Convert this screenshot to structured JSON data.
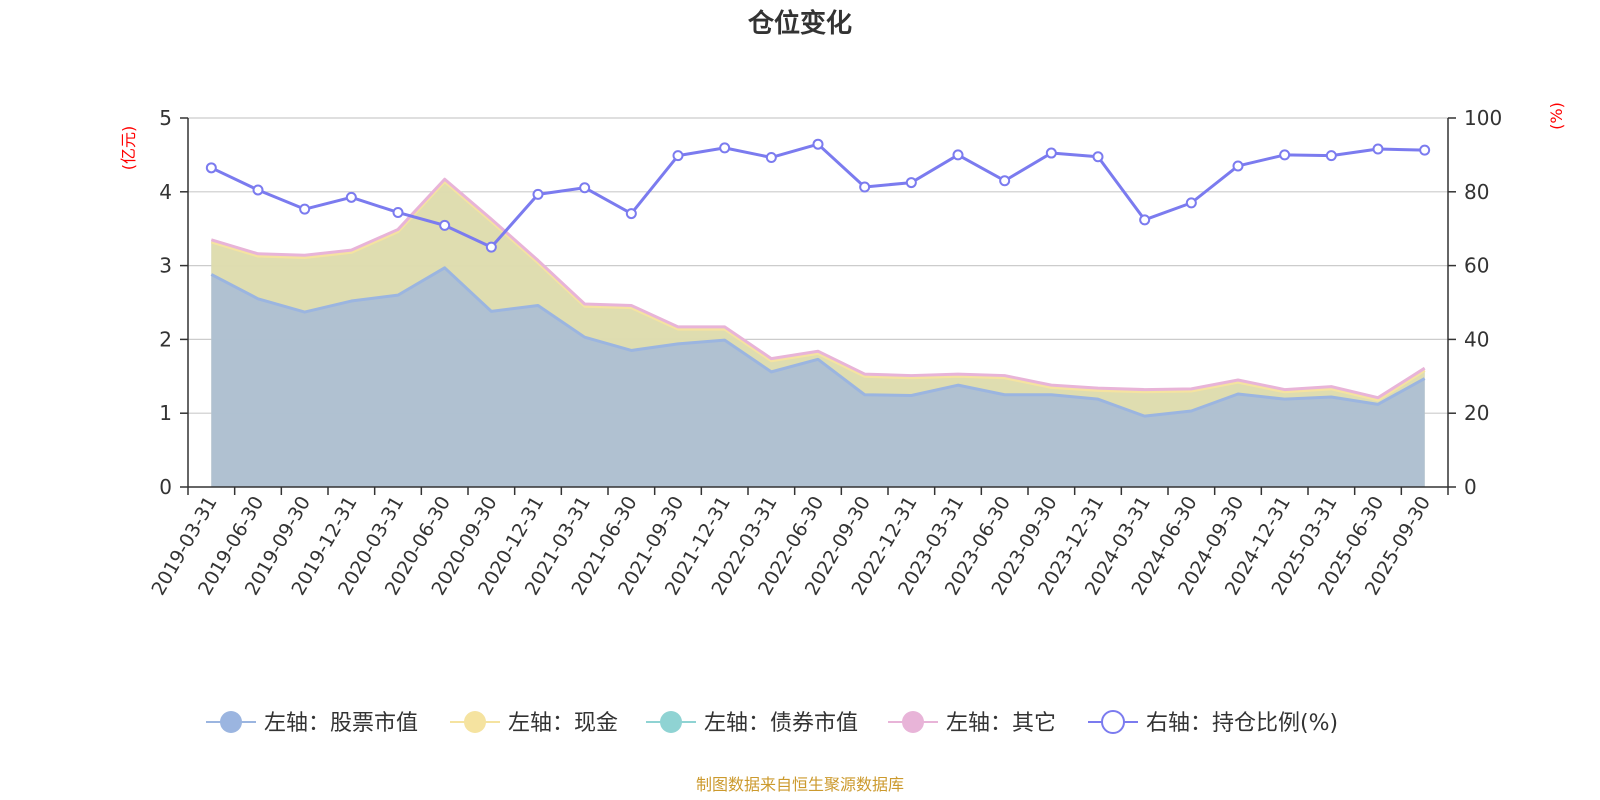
{
  "chart_data": {
    "type": "area",
    "title": "仓位变化",
    "left_axis_unit": "(亿元)",
    "right_axis_unit": "(%)",
    "ylim_left": [
      0,
      5
    ],
    "ylim_right": [
      0,
      100
    ],
    "yticks_left": [
      "0",
      "1",
      "2",
      "3",
      "4",
      "5"
    ],
    "yticks_right": [
      "0",
      "20",
      "40",
      "60",
      "80",
      "100"
    ],
    "categories": [
      "2019-03-31",
      "2019-06-30",
      "2019-09-30",
      "2019-12-31",
      "2020-03-31",
      "2020-06-30",
      "2020-09-30",
      "2020-12-31",
      "2021-03-31",
      "2021-06-30",
      "2021-09-30",
      "2021-12-31",
      "2022-03-31",
      "2022-06-30",
      "2022-09-30",
      "2022-12-31",
      "2023-03-31",
      "2023-06-30",
      "2023-09-30",
      "2023-12-31",
      "2024-03-31",
      "2024-06-30",
      "2024-09-30",
      "2024-12-31",
      "2025-03-31",
      "2025-06-30",
      "2025-09-30"
    ],
    "series": [
      {
        "name": "左轴：股票市值",
        "axis": "left",
        "color": "#9bb5e0",
        "values": [
          2.88,
          2.55,
          2.37,
          2.52,
          2.6,
          2.97,
          2.38,
          2.46,
          2.03,
          1.85,
          1.94,
          1.99,
          1.56,
          1.73,
          1.25,
          1.24,
          1.38,
          1.25,
          1.25,
          1.19,
          0.96,
          1.03,
          1.26,
          1.19,
          1.22,
          1.12,
          1.47
        ]
      },
      {
        "name": "左轴：现金",
        "axis": "left",
        "color": "#f5e3a0",
        "values": [
          0.44,
          0.58,
          0.74,
          0.66,
          0.86,
          1.17,
          1.22,
          0.58,
          0.42,
          0.58,
          0.2,
          0.15,
          0.15,
          0.08,
          0.25,
          0.24,
          0.12,
          0.23,
          0.1,
          0.12,
          0.33,
          0.27,
          0.16,
          0.1,
          0.11,
          0.06,
          0.11
        ]
      },
      {
        "name": "左轴：债券市值",
        "axis": "left",
        "color": "#8fd3d3",
        "values": [
          0,
          0,
          0,
          0,
          0,
          0,
          0,
          0,
          0,
          0,
          0,
          0,
          0,
          0,
          0,
          0,
          0,
          0,
          0,
          0,
          0,
          0,
          0,
          0,
          0,
          0,
          0
        ]
      },
      {
        "name": "左轴：其它",
        "axis": "left",
        "color": "#e8b4d8",
        "values": [
          0.03,
          0.03,
          0.03,
          0.03,
          0.03,
          0.03,
          0.03,
          0.03,
          0.03,
          0.03,
          0.03,
          0.03,
          0.03,
          0.03,
          0.03,
          0.03,
          0.03,
          0.03,
          0.03,
          0.03,
          0.03,
          0.03,
          0.03,
          0.03,
          0.03,
          0.03,
          0.03
        ]
      },
      {
        "name": "右轴：持仓比例(%)",
        "axis": "right",
        "color": "#7b7bef",
        "values": [
          86.5,
          80.5,
          75.3,
          78.5,
          74.4,
          70.9,
          65.0,
          79.3,
          81.1,
          74.1,
          89.8,
          91.9,
          89.3,
          92.9,
          81.3,
          82.5,
          90.0,
          83.0,
          90.5,
          89.5,
          72.4,
          77.0,
          87.0,
          90.0,
          89.8,
          91.6,
          91.3
        ]
      }
    ],
    "source": "制图数据来自恒生聚源数据库"
  },
  "colors": {
    "stock": "#9bb5e0",
    "cash": "#f5e3a0",
    "bond": "#8fd3d3",
    "other": "#e8b4d8",
    "ratio": "#7b7bef",
    "unit_red": "#ff0000",
    "source": "#cc9a2e"
  }
}
